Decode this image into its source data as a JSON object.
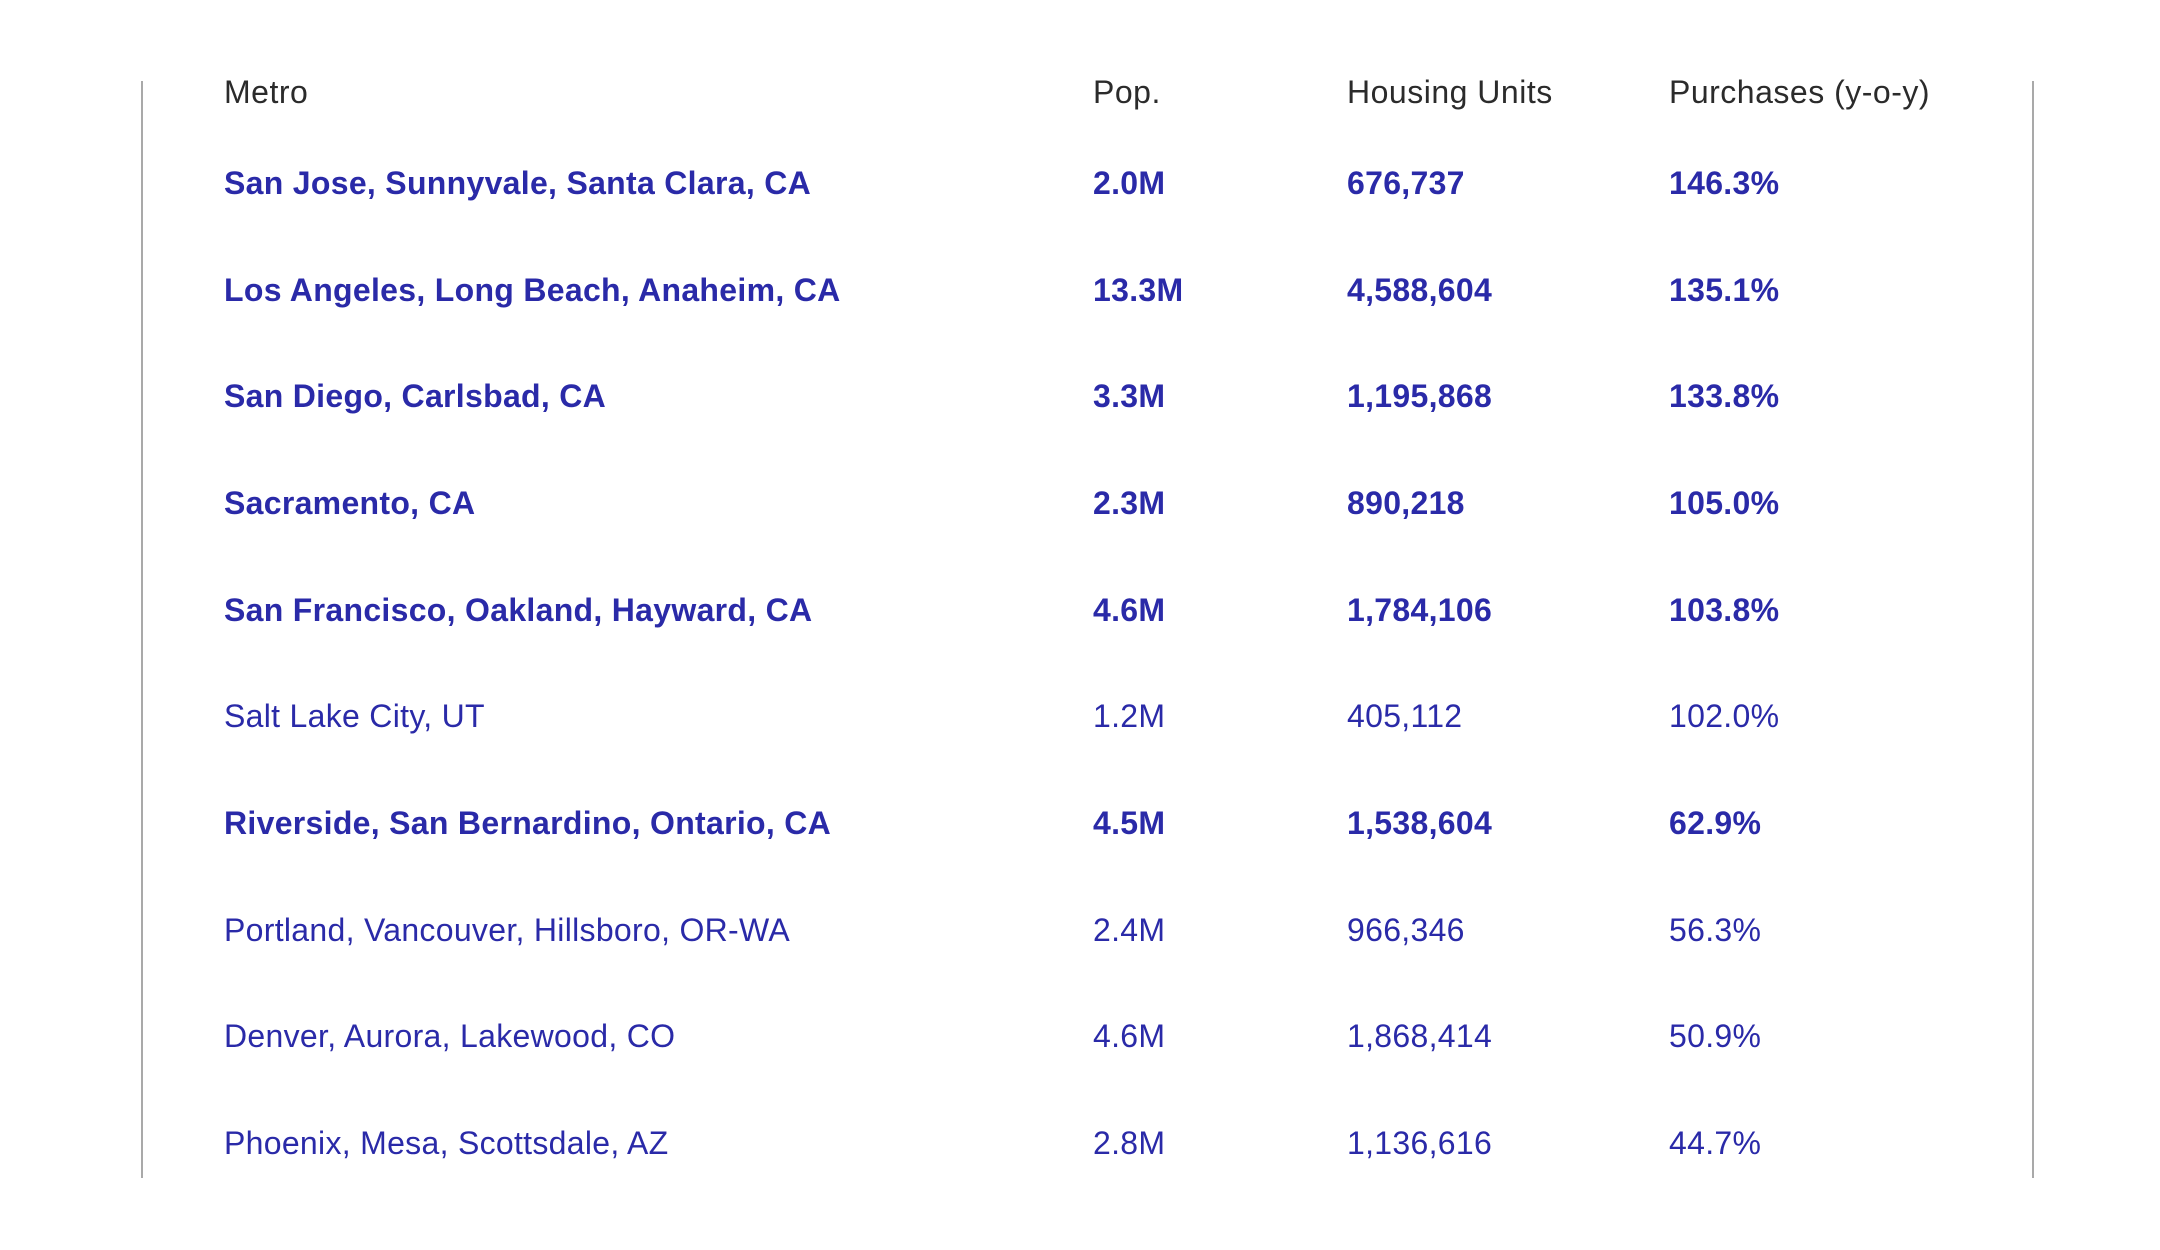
{
  "table": {
    "headers": {
      "metro": "Metro",
      "pop": "Pop.",
      "units": "Housing Units",
      "purchases": "Purchases (y-o-y)"
    },
    "rows": [
      {
        "metro": "San Jose, Sunnyvale, Santa Clara, CA",
        "pop": "2.0M",
        "units": "676,737",
        "purchases": "146.3%",
        "bold": true
      },
      {
        "metro": "Los Angeles, Long Beach, Anaheim, CA",
        "pop": "13.3M",
        "units": "4,588,604",
        "purchases": "135.1%",
        "bold": true
      },
      {
        "metro": "San Diego, Carlsbad, CA",
        "pop": "3.3M",
        "units": "1,195,868",
        "purchases": "133.8%",
        "bold": true
      },
      {
        "metro": "Sacramento, CA",
        "pop": "2.3M",
        "units": "890,218",
        "purchases": "105.0%",
        "bold": true
      },
      {
        "metro": "San Francisco, Oakland, Hayward, CA",
        "pop": "4.6M",
        "units": "1,784,106",
        "purchases": "103.8%",
        "bold": true
      },
      {
        "metro": "Salt Lake City, UT",
        "pop": "1.2M",
        "units": "405,112",
        "purchases": "102.0%",
        "bold": false
      },
      {
        "metro": "Riverside, San Bernardino, Ontario, CA",
        "pop": "4.5M",
        "units": "1,538,604",
        "purchases": "62.9%",
        "bold": true
      },
      {
        "metro": "Portland, Vancouver, Hillsboro, OR-WA",
        "pop": "2.4M",
        "units": "966,346",
        "purchases": "56.3%",
        "bold": false
      },
      {
        "metro": "Denver, Aurora, Lakewood, CO",
        "pop": "4.6M",
        "units": "1,868,414",
        "purchases": "50.9%",
        "bold": false
      },
      {
        "metro": "Phoenix, Mesa, Scottsdale, AZ",
        "pop": "2.8M",
        "units": "1,136,616",
        "purchases": "44.7%",
        "bold": false
      }
    ]
  },
  "colors": {
    "row_text": "#2a2aa8",
    "header_text": "#2b2b2b",
    "frame_rule": "#a9a9a9"
  }
}
